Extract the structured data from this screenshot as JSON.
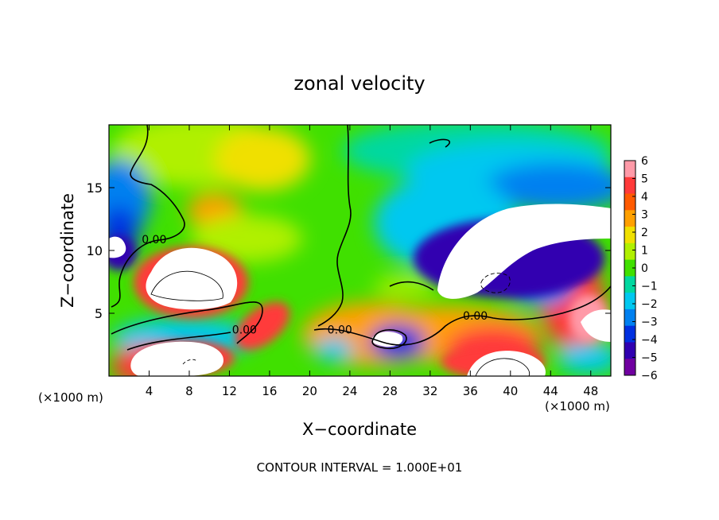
{
  "chart_data": {
    "type": "heatmap",
    "title": "zonal velocity",
    "xlabel": "X−coordinate",
    "ylabel": "Z−coordinate",
    "x_unit_left": "(×1000 m)",
    "x_unit_right": "(×1000 m)",
    "footer": "CONTOUR INTERVAL = 1.000E+01",
    "xlim": [
      0,
      50
    ],
    "ylim": [
      0,
      20
    ],
    "x_ticks": [
      4,
      8,
      12,
      16,
      20,
      24,
      28,
      32,
      36,
      40,
      44,
      48
    ],
    "y_ticks": [
      5,
      10,
      15
    ],
    "colorbar": {
      "range": [
        -6,
        6
      ],
      "labels": [
        "6",
        "5",
        "4",
        "3",
        "2",
        "1",
        "0",
        "−1",
        "−2",
        "−3",
        "−4",
        "−5",
        "−6"
      ],
      "colors": [
        "#ff9aa8",
        "#ff3a3a",
        "#ff5a00",
        "#ffa000",
        "#f0e000",
        "#b0f000",
        "#40e000",
        "#00d8a0",
        "#00c8f0",
        "#0080f0",
        "#0030e0",
        "#3000b0",
        "#7000a0"
      ]
    },
    "contour_labels": [
      {
        "text": "0.00",
        "x": 4.5,
        "y": 10.9
      },
      {
        "text": "0.00",
        "x": 13.5,
        "y": 3.7
      },
      {
        "text": "0.00",
        "x": 23.0,
        "y": 3.7
      },
      {
        "text": "0.00",
        "x": 36.5,
        "y": 4.8
      }
    ]
  }
}
